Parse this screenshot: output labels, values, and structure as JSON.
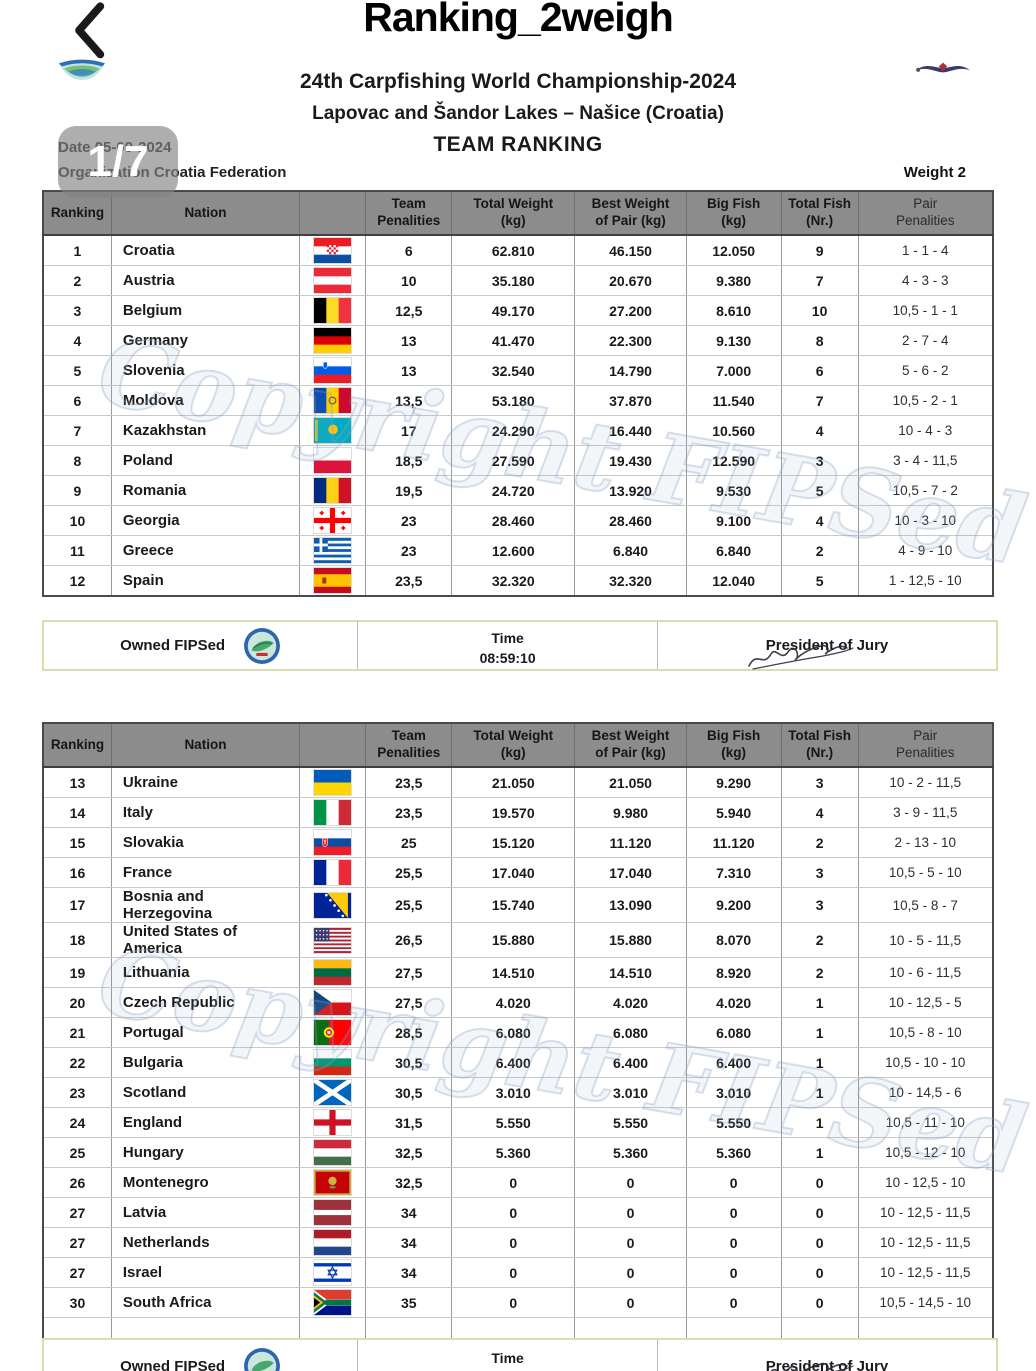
{
  "app_header": {
    "title": "Ranking_2weigh"
  },
  "page_indicator": "1/7",
  "doc": {
    "title": "24th Carpfishing World Championship-2024",
    "subtitle": "Lapovac and Šandor Lakes – Našice (Croatia)",
    "section_title": "TEAM RANKING",
    "date_label": "Date",
    "date_value": "05-09-2024",
    "org_label": "Organization",
    "org_value": "Croatia Federation",
    "weight_label": "Weight 2",
    "watermark": "Copyright FIPSed"
  },
  "table_headers": [
    "Ranking",
    "Nation",
    "",
    "Team\nPenalities",
    "Total Weight\n(kg)",
    "Best Weight\nof Pair (kg)",
    "Big Fish\n(kg)",
    "Total Fish\n(Nr.)",
    "Pair\nPenalities"
  ],
  "table1": {
    "rows": [
      {
        "ranking": "1",
        "nation": "Croatia",
        "flag": "croatia",
        "team_penalties": "6",
        "total_weight_kg": "62.810",
        "best_weight_pair_kg": "46.150",
        "big_fish_kg": "12.050",
        "total_fish": "9",
        "pair_penalties": "1 - 1 - 4"
      },
      {
        "ranking": "2",
        "nation": "Austria",
        "flag": "austria",
        "team_penalties": "10",
        "total_weight_kg": "35.180",
        "best_weight_pair_kg": "20.670",
        "big_fish_kg": "9.380",
        "total_fish": "7",
        "pair_penalties": "4 - 3 - 3"
      },
      {
        "ranking": "3",
        "nation": "Belgium",
        "flag": "belgium",
        "team_penalties": "12,5",
        "total_weight_kg": "49.170",
        "best_weight_pair_kg": "27.200",
        "big_fish_kg": "8.610",
        "total_fish": "10",
        "pair_penalties": "10,5 - 1 - 1"
      },
      {
        "ranking": "4",
        "nation": "Germany",
        "flag": "germany",
        "team_penalties": "13",
        "total_weight_kg": "41.470",
        "best_weight_pair_kg": "22.300",
        "big_fish_kg": "9.130",
        "total_fish": "8",
        "pair_penalties": "2 - 7 - 4"
      },
      {
        "ranking": "5",
        "nation": "Slovenia",
        "flag": "slovenia",
        "team_penalties": "13",
        "total_weight_kg": "32.540",
        "best_weight_pair_kg": "14.790",
        "big_fish_kg": "7.000",
        "total_fish": "6",
        "pair_penalties": "5 - 6 - 2"
      },
      {
        "ranking": "6",
        "nation": "Moldova",
        "flag": "moldova",
        "team_penalties": "13,5",
        "total_weight_kg": "53.180",
        "best_weight_pair_kg": "37.870",
        "big_fish_kg": "11.540",
        "total_fish": "7",
        "pair_penalties": "10,5 - 2 - 1"
      },
      {
        "ranking": "7",
        "nation": "Kazakhstan",
        "flag": "kazakhstan",
        "team_penalties": "17",
        "total_weight_kg": "24.290",
        "best_weight_pair_kg": "16.440",
        "big_fish_kg": "10.560",
        "total_fish": "4",
        "pair_penalties": "10 - 4 - 3"
      },
      {
        "ranking": "8",
        "nation": "Poland",
        "flag": "poland",
        "team_penalties": "18,5",
        "total_weight_kg": "27.590",
        "best_weight_pair_kg": "19.430",
        "big_fish_kg": "12.590",
        "total_fish": "3",
        "pair_penalties": "3 - 4 - 11,5"
      },
      {
        "ranking": "9",
        "nation": "Romania",
        "flag": "romania",
        "team_penalties": "19,5",
        "total_weight_kg": "24.720",
        "best_weight_pair_kg": "13.920",
        "big_fish_kg": "9.530",
        "total_fish": "5",
        "pair_penalties": "10,5 - 7 - 2"
      },
      {
        "ranking": "10",
        "nation": "Georgia",
        "flag": "georgia",
        "team_penalties": "23",
        "total_weight_kg": "28.460",
        "best_weight_pair_kg": "28.460",
        "big_fish_kg": "9.100",
        "total_fish": "4",
        "pair_penalties": "10 - 3 - 10"
      },
      {
        "ranking": "11",
        "nation": "Greece",
        "flag": "greece",
        "team_penalties": "23",
        "total_weight_kg": "12.600",
        "best_weight_pair_kg": "6.840",
        "big_fish_kg": "6.840",
        "total_fish": "2",
        "pair_penalties": "4 - 9 - 10"
      },
      {
        "ranking": "12",
        "nation": "Spain",
        "flag": "spain",
        "team_penalties": "23,5",
        "total_weight_kg": "32.320",
        "best_weight_pair_kg": "32.320",
        "big_fish_kg": "12.040",
        "total_fish": "5",
        "pair_penalties": "1 - 12,5 - 10"
      }
    ]
  },
  "table2": {
    "rows": [
      {
        "ranking": "13",
        "nation": "Ukraine",
        "flag": "ukraine",
        "team_penalties": "23,5",
        "total_weight_kg": "21.050",
        "best_weight_pair_kg": "21.050",
        "big_fish_kg": "9.290",
        "total_fish": "3",
        "pair_penalties": "10 - 2 - 11,5"
      },
      {
        "ranking": "14",
        "nation": "Italy",
        "flag": "italy",
        "team_penalties": "23,5",
        "total_weight_kg": "19.570",
        "best_weight_pair_kg": "9.980",
        "big_fish_kg": "5.940",
        "total_fish": "4",
        "pair_penalties": "3 - 9 - 11,5"
      },
      {
        "ranking": "15",
        "nation": "Slovakia",
        "flag": "slovakia",
        "team_penalties": "25",
        "total_weight_kg": "15.120",
        "best_weight_pair_kg": "11.120",
        "big_fish_kg": "11.120",
        "total_fish": "2",
        "pair_penalties": "2 - 13 - 10"
      },
      {
        "ranking": "16",
        "nation": "France",
        "flag": "france",
        "team_penalties": "25,5",
        "total_weight_kg": "17.040",
        "best_weight_pair_kg": "17.040",
        "big_fish_kg": "7.310",
        "total_fish": "3",
        "pair_penalties": "10,5 - 5 - 10"
      },
      {
        "ranking": "17",
        "nation": "Bosnia and Herzegovina",
        "flag": "bosnia",
        "team_penalties": "25,5",
        "total_weight_kg": "15.740",
        "best_weight_pair_kg": "13.090",
        "big_fish_kg": "9.200",
        "total_fish": "3",
        "pair_penalties": "10,5 - 8 - 7"
      },
      {
        "ranking": "18",
        "nation": "United States of America",
        "flag": "usa",
        "team_penalties": "26,5",
        "total_weight_kg": "15.880",
        "best_weight_pair_kg": "15.880",
        "big_fish_kg": "8.070",
        "total_fish": "2",
        "pair_penalties": "10 - 5 - 11,5"
      },
      {
        "ranking": "19",
        "nation": "Lithuania",
        "flag": "lithuania",
        "team_penalties": "27,5",
        "total_weight_kg": "14.510",
        "best_weight_pair_kg": "14.510",
        "big_fish_kg": "8.920",
        "total_fish": "2",
        "pair_penalties": "10 - 6 - 11,5"
      },
      {
        "ranking": "20",
        "nation": "Czech Republic",
        "flag": "czech",
        "team_penalties": "27,5",
        "total_weight_kg": "4.020",
        "best_weight_pair_kg": "4.020",
        "big_fish_kg": "4.020",
        "total_fish": "1",
        "pair_penalties": "10 - 12,5 - 5"
      },
      {
        "ranking": "21",
        "nation": "Portugal",
        "flag": "portugal",
        "team_penalties": "28,5",
        "total_weight_kg": "6.080",
        "best_weight_pair_kg": "6.080",
        "big_fish_kg": "6.080",
        "total_fish": "1",
        "pair_penalties": "10,5 - 8 - 10"
      },
      {
        "ranking": "22",
        "nation": "Bulgaria",
        "flag": "bulgaria",
        "team_penalties": "30,5",
        "total_weight_kg": "6.400",
        "best_weight_pair_kg": "6.400",
        "big_fish_kg": "6.400",
        "total_fish": "1",
        "pair_penalties": "10,5 - 10 - 10"
      },
      {
        "ranking": "23",
        "nation": "Scotland",
        "flag": "scotland",
        "team_penalties": "30,5",
        "total_weight_kg": "3.010",
        "best_weight_pair_kg": "3.010",
        "big_fish_kg": "3.010",
        "total_fish": "1",
        "pair_penalties": "10 - 14,5 - 6"
      },
      {
        "ranking": "24",
        "nation": "England",
        "flag": "england",
        "team_penalties": "31,5",
        "total_weight_kg": "5.550",
        "best_weight_pair_kg": "5.550",
        "big_fish_kg": "5.550",
        "total_fish": "1",
        "pair_penalties": "10,5 - 11 - 10"
      },
      {
        "ranking": "25",
        "nation": "Hungary",
        "flag": "hungary",
        "team_penalties": "32,5",
        "total_weight_kg": "5.360",
        "best_weight_pair_kg": "5.360",
        "big_fish_kg": "5.360",
        "total_fish": "1",
        "pair_penalties": "10,5 - 12 - 10"
      },
      {
        "ranking": "26",
        "nation": "Montenegro",
        "flag": "montenegro",
        "team_penalties": "32,5",
        "total_weight_kg": "0",
        "best_weight_pair_kg": "0",
        "big_fish_kg": "0",
        "total_fish": "0",
        "pair_penalties": "10 - 12,5 - 10"
      },
      {
        "ranking": "27",
        "nation": "Latvia",
        "flag": "latvia",
        "team_penalties": "34",
        "total_weight_kg": "0",
        "best_weight_pair_kg": "0",
        "big_fish_kg": "0",
        "total_fish": "0",
        "pair_penalties": "10 - 12,5 - 11,5"
      },
      {
        "ranking": "27",
        "nation": "Netherlands",
        "flag": "netherlands",
        "team_penalties": "34",
        "total_weight_kg": "0",
        "best_weight_pair_kg": "0",
        "big_fish_kg": "0",
        "total_fish": "0",
        "pair_penalties": "10 - 12,5 - 11,5"
      },
      {
        "ranking": "27",
        "nation": "Israel",
        "flag": "israel",
        "team_penalties": "34",
        "total_weight_kg": "0",
        "best_weight_pair_kg": "0",
        "big_fish_kg": "0",
        "total_fish": "0",
        "pair_penalties": "10 - 12,5 - 11,5"
      },
      {
        "ranking": "30",
        "nation": "South Africa",
        "flag": "southafrica",
        "team_penalties": "35",
        "total_weight_kg": "0",
        "best_weight_pair_kg": "0",
        "big_fish_kg": "0",
        "total_fish": "0",
        "pair_penalties": "10,5 - 14,5 - 10"
      },
      {
        "ranking": "",
        "nation": "",
        "flag": "",
        "team_penalties": "",
        "total_weight_kg": "",
        "best_weight_pair_kg": "",
        "big_fish_kg": "",
        "total_fish": "",
        "pair_penalties": ""
      }
    ]
  },
  "footer": {
    "owned_label": "Owned FIPSed",
    "time_label": "Time",
    "time_value": "08:59:10",
    "president_label": "President of Jury"
  }
}
